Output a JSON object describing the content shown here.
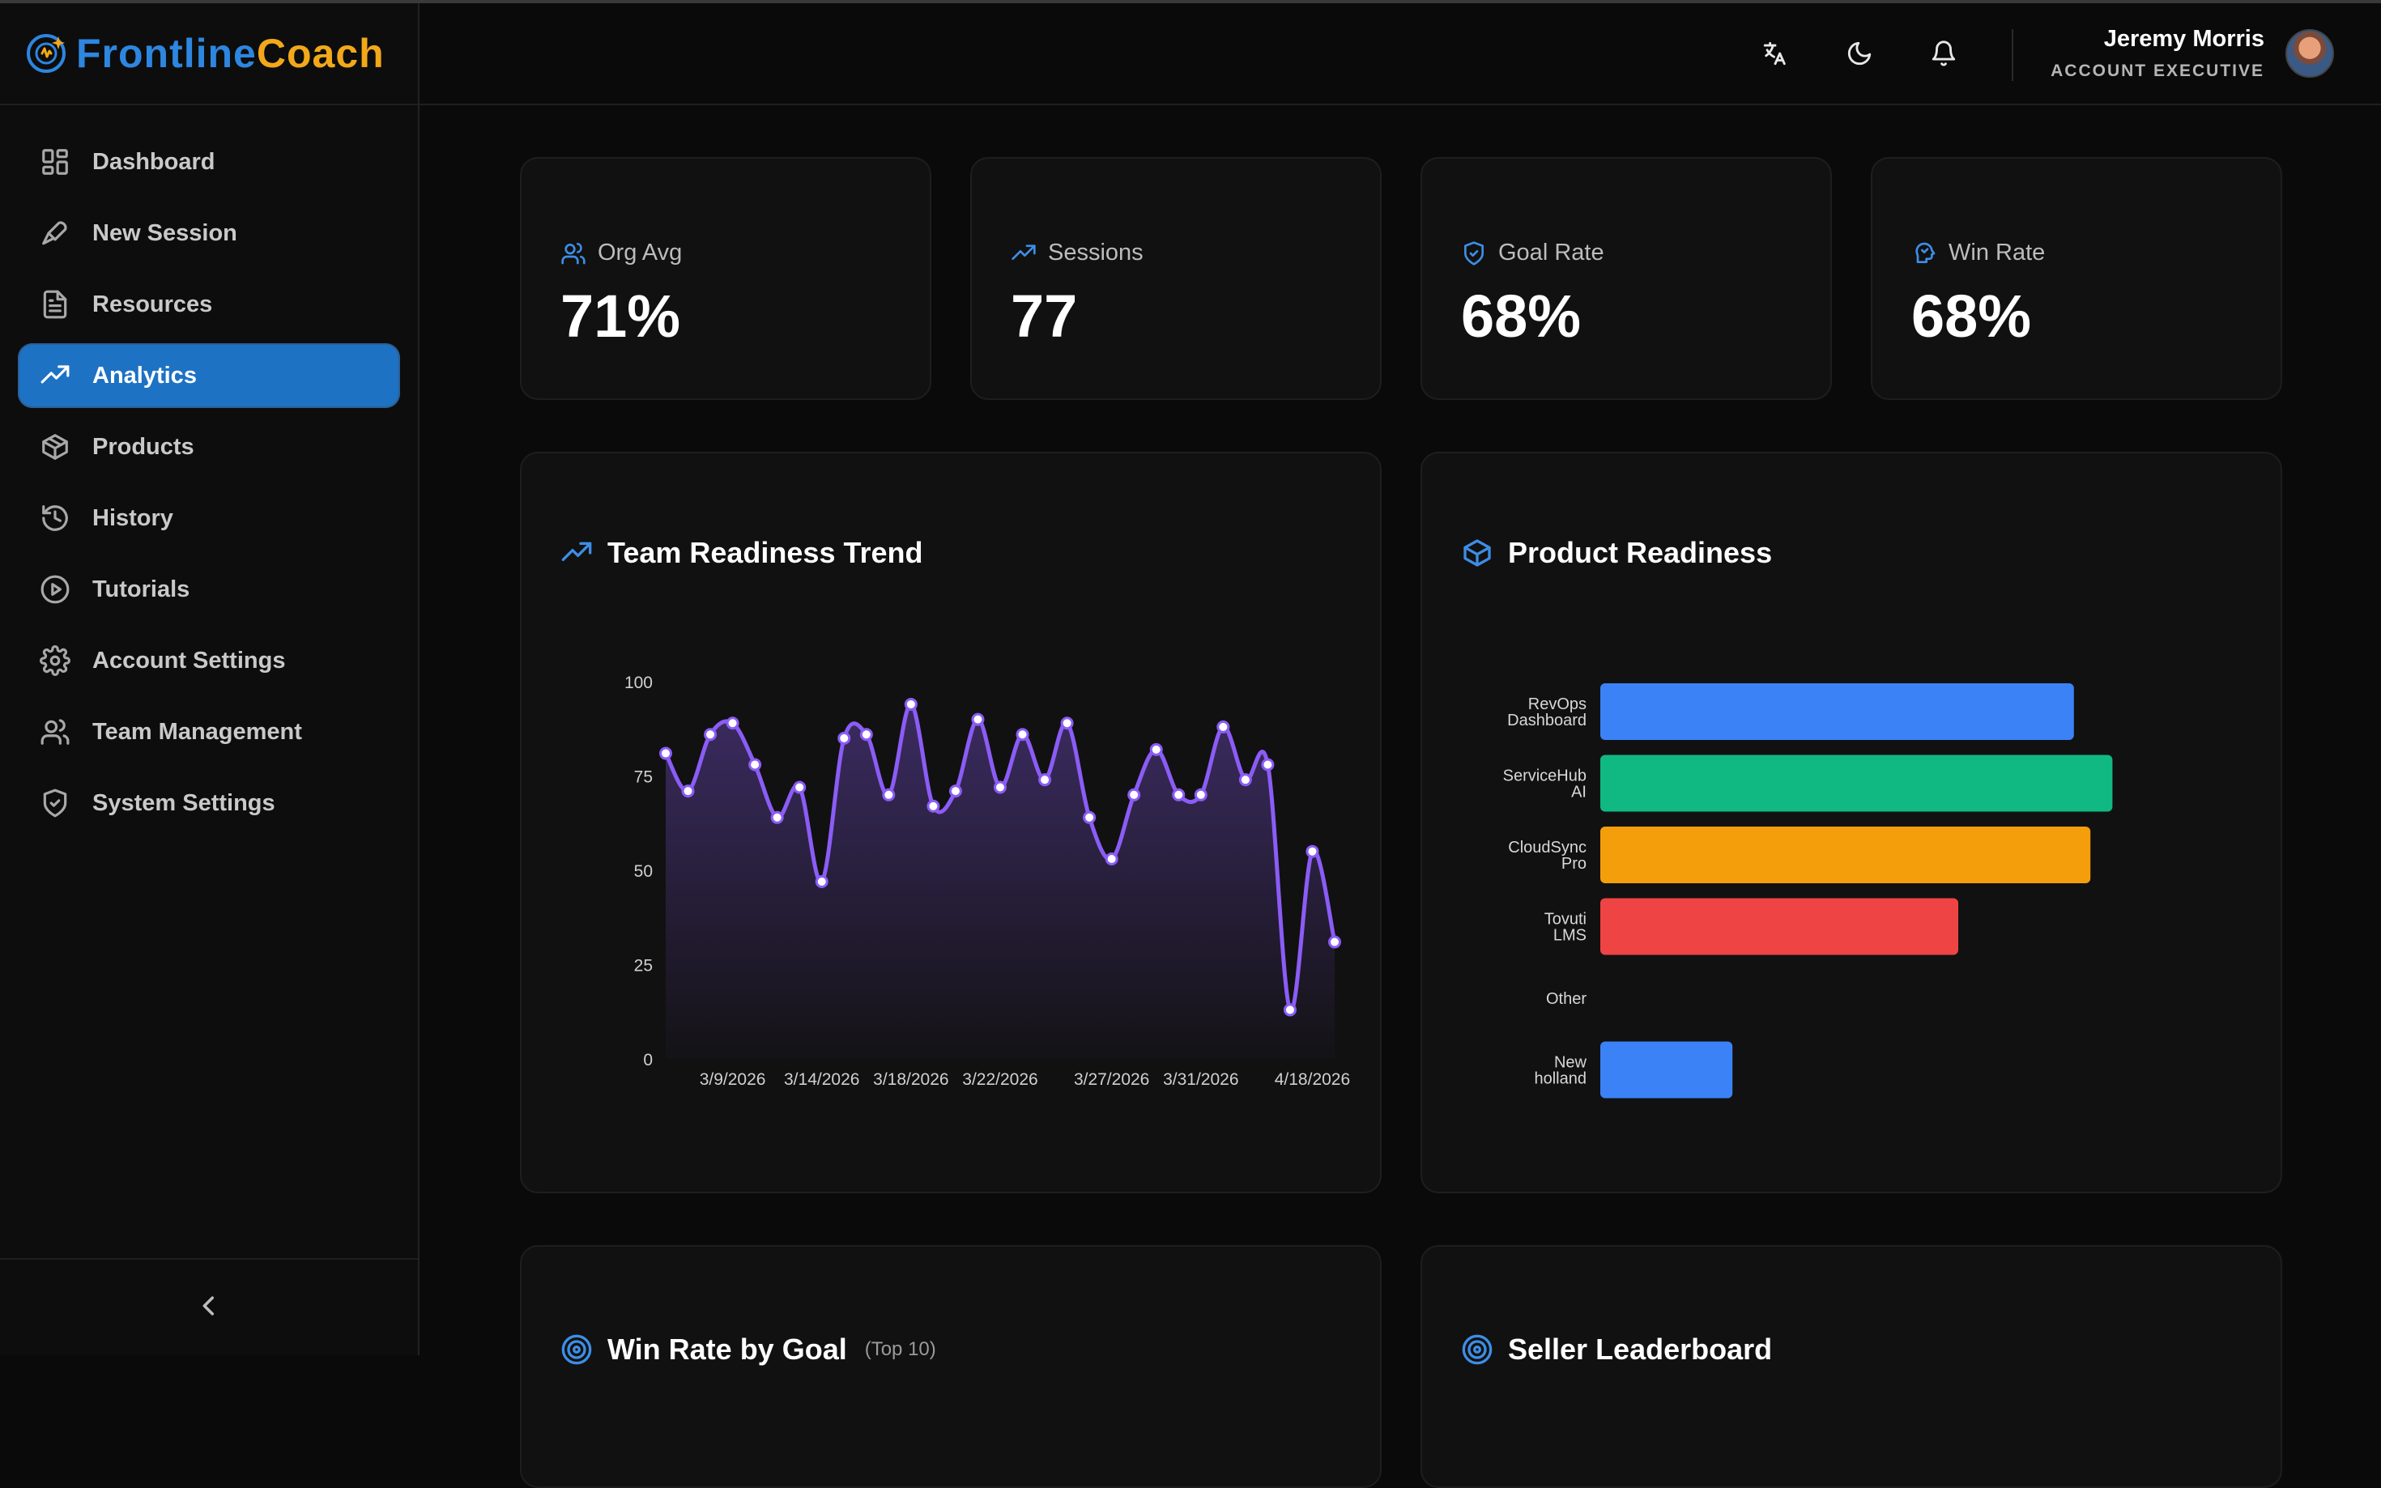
{
  "brand": {
    "part1": "Frontline",
    "part2": "Coach"
  },
  "sidebar": {
    "items": [
      {
        "label": "Dashboard",
        "icon": "dashboard-icon"
      },
      {
        "label": "New Session",
        "icon": "microphone-icon"
      },
      {
        "label": "Resources",
        "icon": "document-icon"
      },
      {
        "label": "Analytics",
        "icon": "trending-up-icon",
        "active": true
      },
      {
        "label": "Products",
        "icon": "package-icon"
      },
      {
        "label": "History",
        "icon": "history-icon"
      },
      {
        "label": "Tutorials",
        "icon": "play-circle-icon"
      },
      {
        "label": "Account Settings",
        "icon": "gear-icon"
      },
      {
        "label": "Team Management",
        "icon": "users-icon"
      },
      {
        "label": "System Settings",
        "icon": "shield-check-icon"
      }
    ],
    "collapse_icon": "chevron-left-icon"
  },
  "header": {
    "icons": [
      "translate-icon",
      "moon-icon",
      "bell-icon"
    ],
    "user": {
      "name": "Jeremy Morris",
      "role": "ACCOUNT EXECUTIVE"
    }
  },
  "stats": [
    {
      "label": "Org Avg",
      "value": "71%",
      "icon": "users-icon"
    },
    {
      "label": "Sessions",
      "value": "77",
      "icon": "trending-up-icon"
    },
    {
      "label": "Goal Rate",
      "value": "68%",
      "icon": "shield-check-icon"
    },
    {
      "label": "Win Rate",
      "value": "68%",
      "icon": "head-icon"
    }
  ],
  "trend": {
    "title": "Team Readiness Trend"
  },
  "product": {
    "title": "Product Readiness"
  },
  "win_rate": {
    "title": "Win Rate by Goal",
    "subtitle": "(Top 10)"
  },
  "leaderboard": {
    "title": "Seller Leaderboard"
  },
  "colors": {
    "accent": "#1d72c4",
    "line": "#8b5cf6",
    "brand_blue": "#2d86e0",
    "brand_orange": "#f2a81a"
  },
  "chart_data": [
    {
      "type": "line",
      "title": "Team Readiness Trend",
      "ylim": [
        0,
        100
      ],
      "yticks": [
        "0",
        "25",
        "50",
        "75",
        "100"
      ],
      "xtick_labels": [
        "3/9/2026",
        "3/14/2026",
        "3/18/2026",
        "3/22/2026",
        "3/27/2026",
        "3/31/2026",
        "4/18/2026"
      ],
      "values": [
        81,
        71,
        86,
        89,
        78,
        64,
        72,
        47,
        85,
        86,
        70,
        94,
        67,
        71,
        90,
        72,
        86,
        74,
        89,
        64,
        53,
        70,
        82,
        70,
        70,
        88,
        74,
        78,
        13,
        55,
        31
      ]
    },
    {
      "type": "bar",
      "orientation": "horizontal",
      "title": "Product Readiness",
      "categories": [
        [
          "RevOps",
          "Dashboard"
        ],
        [
          "ServiceHub",
          "AI"
        ],
        [
          "CloudSync",
          "Pro"
        ],
        [
          "Tovuti",
          "LMS"
        ],
        [
          "Other"
        ],
        [
          "New",
          "holland"
        ]
      ],
      "values": [
        86,
        93,
        89,
        65,
        0,
        24
      ],
      "colors": [
        "#3b82f6",
        "#10b981",
        "#f59e0b",
        "#ef4444",
        "#8b5cf6",
        "#3b82f6"
      ],
      "xlim": [
        0,
        100
      ]
    }
  ]
}
